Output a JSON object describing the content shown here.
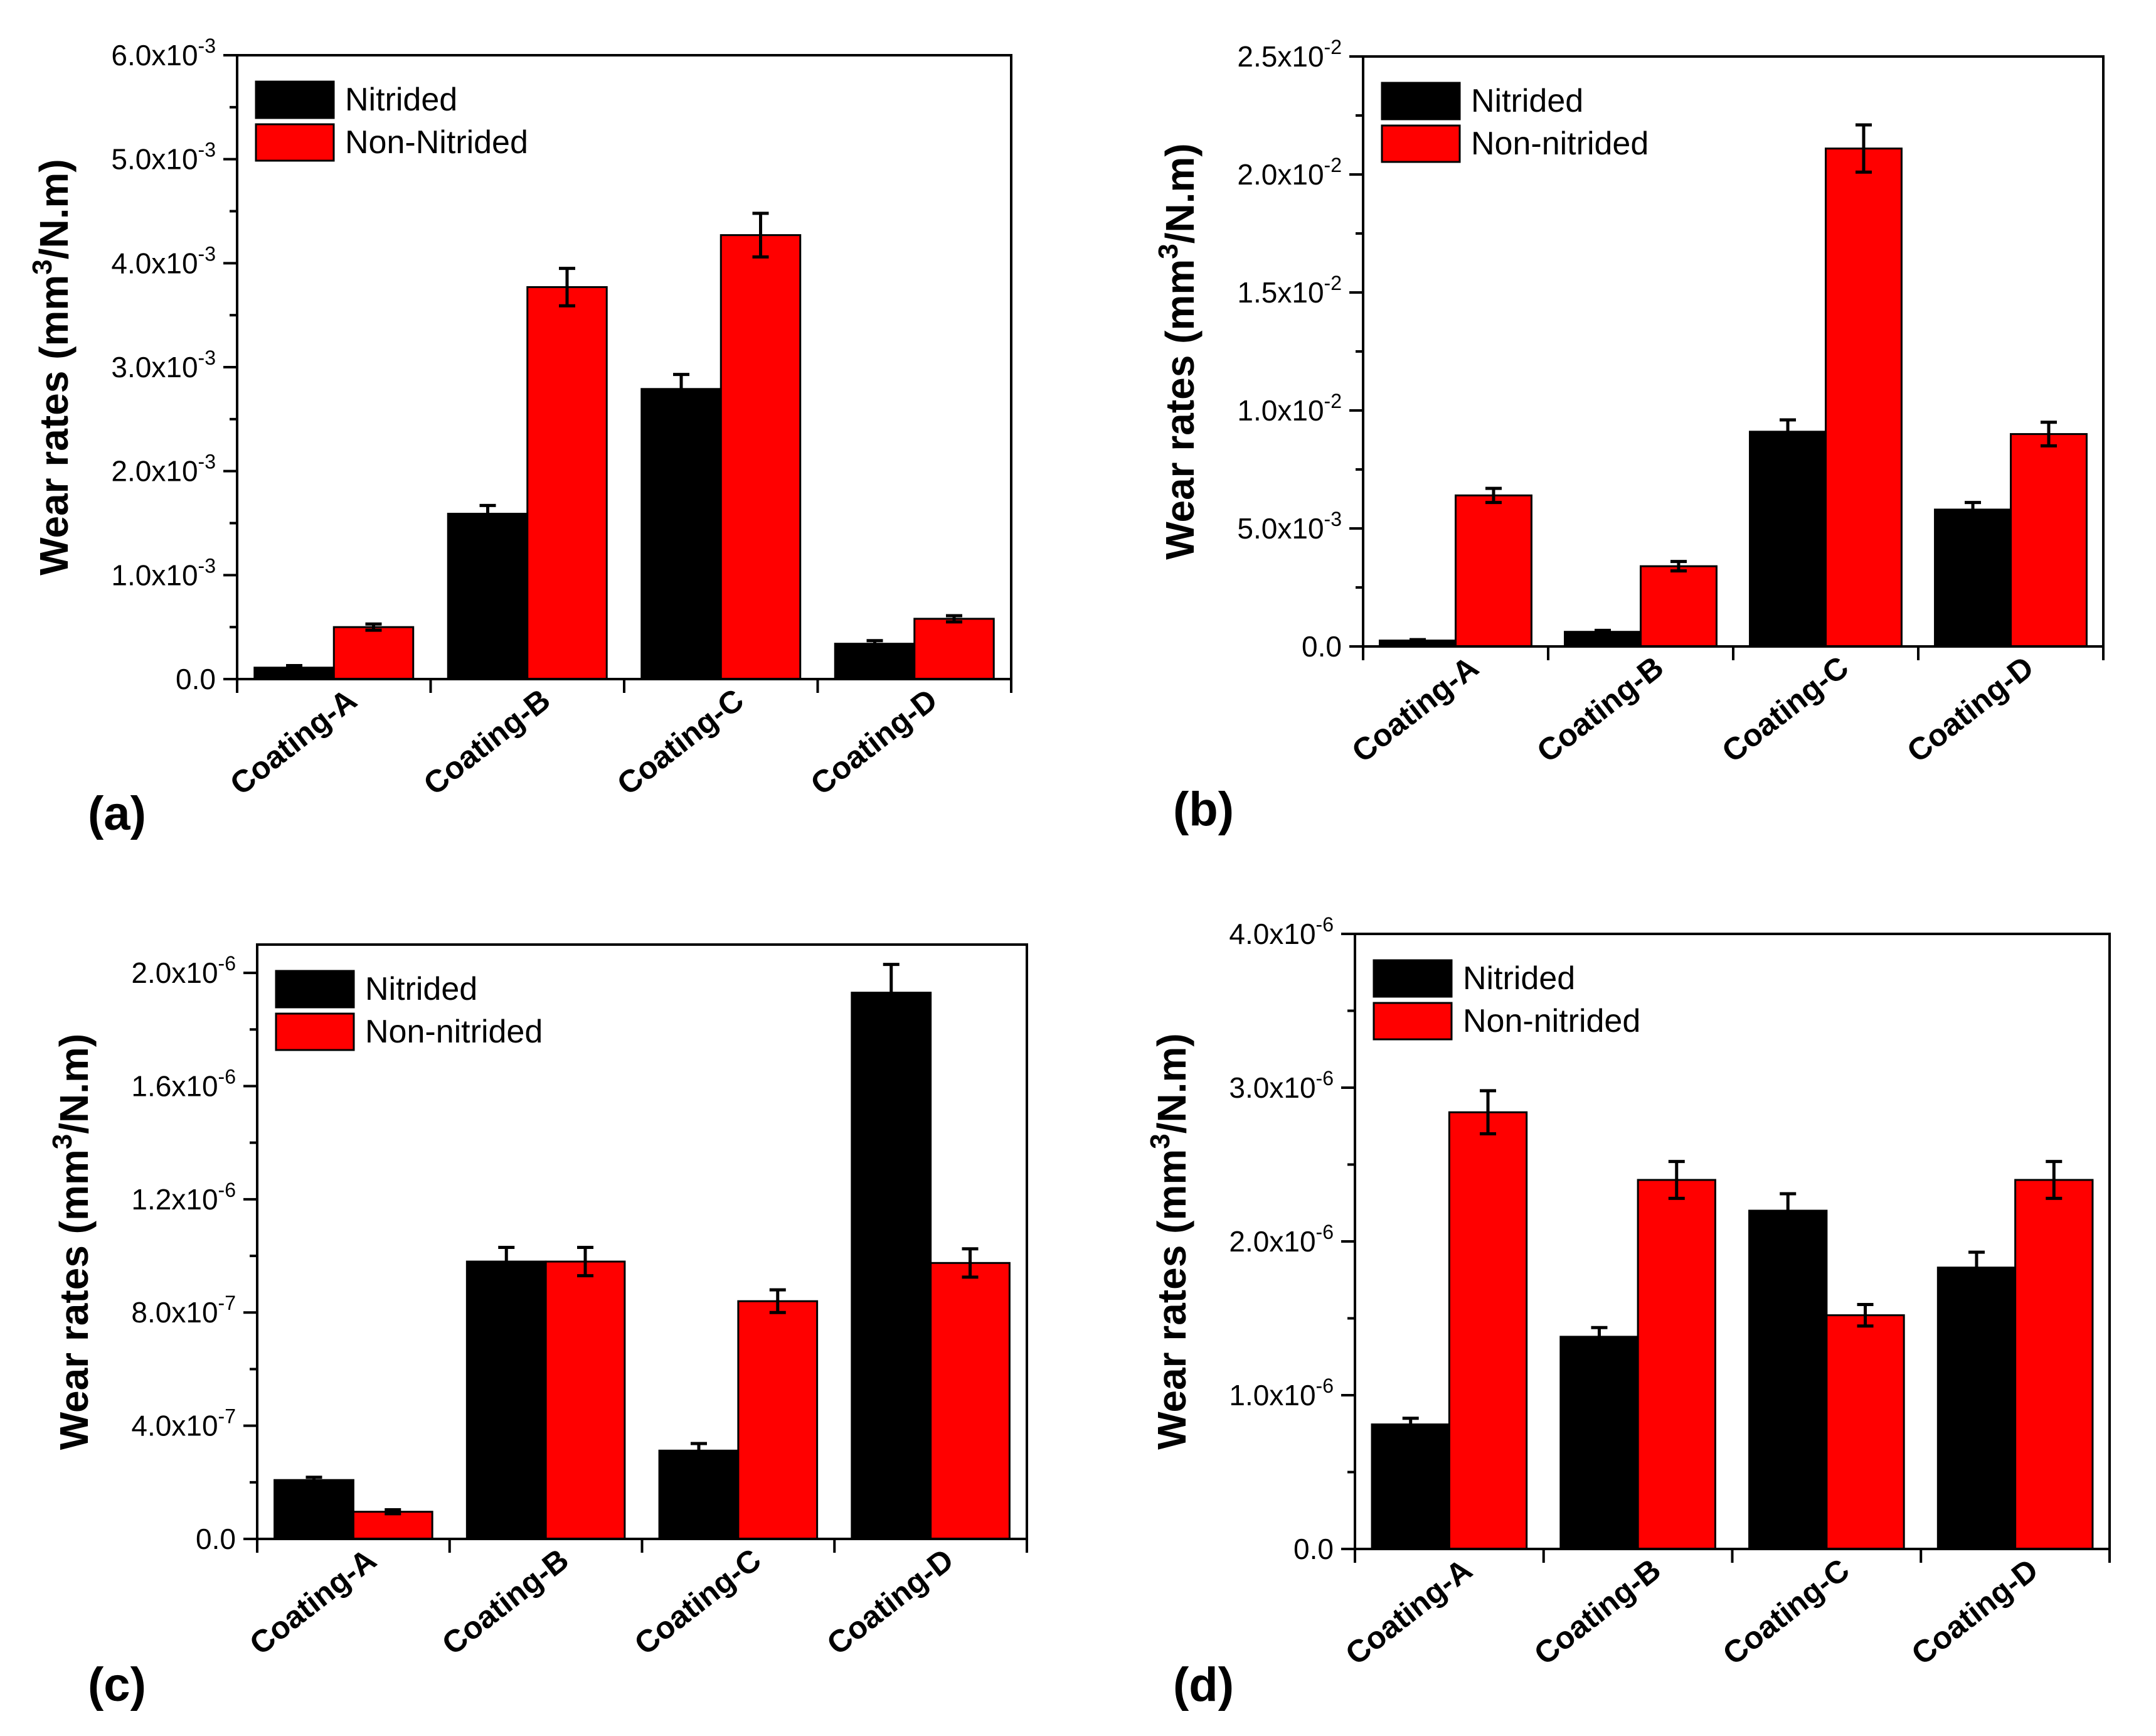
{
  "chart_data": [
    {
      "type": "bar",
      "panel_label": "(a)",
      "ylabel": "Wear rates (mm³/N.m)",
      "ylabel_parts": [
        "Wear rates (mm",
        "3",
        "/N.m)"
      ],
      "ylim": [
        0,
        0.006
      ],
      "yticks": [
        {
          "value": 0,
          "mant": "0.0",
          "exp": ""
        },
        {
          "value": 0.001,
          "mant": "1.0x10",
          "exp": "-3"
        },
        {
          "value": 0.002,
          "mant": "2.0x10",
          "exp": "-3"
        },
        {
          "value": 0.003,
          "mant": "3.0x10",
          "exp": "-3"
        },
        {
          "value": 0.004,
          "mant": "4.0x10",
          "exp": "-3"
        },
        {
          "value": 0.005,
          "mant": "5.0x10",
          "exp": "-3"
        },
        {
          "value": 0.006,
          "mant": "6.0x10",
          "exp": "-3"
        }
      ],
      "categories": [
        "Coating-A",
        "Coating-B",
        "Coating-C",
        "Coating-D"
      ],
      "series": [
        {
          "name": "Nitrided",
          "color": "#000000",
          "values": [
            0.00011,
            0.00159,
            0.00279,
            0.00034
          ],
          "errors": [
            2e-05,
            8e-05,
            0.00014,
            3e-05
          ]
        },
        {
          "name": "Non-Nitrided",
          "color": "#ff0000",
          "values": [
            0.0005,
            0.00377,
            0.00427,
            0.00058
          ],
          "errors": [
            3e-05,
            0.00018,
            0.00021,
            3e-05
          ]
        }
      ],
      "legend_position": "top-left",
      "cat_rotation": "rotated"
    },
    {
      "type": "bar",
      "panel_label": "(b)",
      "ylabel": "Wear rates (mm³/N.m)",
      "ylabel_parts": [
        "Wear rates (mm",
        "3",
        "/N.m)"
      ],
      "ylim": [
        0,
        0.025
      ],
      "yticks": [
        {
          "value": 0,
          "mant": "0.0",
          "exp": ""
        },
        {
          "value": 0.005,
          "mant": "5.0x10",
          "exp": "-3"
        },
        {
          "value": 0.01,
          "mant": "1.0x10",
          "exp": "-2"
        },
        {
          "value": 0.015,
          "mant": "1.5x10",
          "exp": "-2"
        },
        {
          "value": 0.02,
          "mant": "2.0x10",
          "exp": "-2"
        },
        {
          "value": 0.025,
          "mant": "2.5x10",
          "exp": "-2"
        }
      ],
      "categories": [
        "Coating-A",
        "Coating-B",
        "Coating-C",
        "Coating-D"
      ],
      "series": [
        {
          "name": "Nitrided",
          "color": "#000000",
          "values": [
            0.00025,
            0.00062,
            0.0091,
            0.0058
          ],
          "errors": [
            4e-05,
            6e-05,
            0.0005,
            0.0003
          ]
        },
        {
          "name": "Non-nitrided",
          "color": "#ff0000",
          "values": [
            0.0064,
            0.0034,
            0.0211,
            0.009
          ],
          "errors": [
            0.0003,
            0.0002,
            0.001,
            0.0005
          ]
        }
      ],
      "legend_position": "top-left",
      "cat_rotation": "rotated"
    },
    {
      "type": "bar",
      "panel_label": "(c)",
      "ylabel": "Wear rates (mm³/N.m)",
      "ylabel_parts": [
        "Wear rates (mm",
        "3",
        "/N.m)"
      ],
      "ylim": [
        0,
        2.1e-06
      ],
      "yticks": [
        {
          "value": 0,
          "mant": "0.0",
          "exp": ""
        },
        {
          "value": 4e-07,
          "mant": "4.0x10",
          "exp": "-7"
        },
        {
          "value": 8e-07,
          "mant": "8.0x10",
          "exp": "-7"
        },
        {
          "value": 1.2e-06,
          "mant": "1.2x10",
          "exp": "-6"
        },
        {
          "value": 1.6e-06,
          "mant": "1.6x10",
          "exp": "-6"
        },
        {
          "value": 2e-06,
          "mant": "2.0x10",
          "exp": "-6"
        }
      ],
      "categories": [
        "Coating-A",
        "Coating-B",
        "Coating-C",
        "Coating-D"
      ],
      "series": [
        {
          "name": "Nitrided",
          "color": "#000000",
          "values": [
            2.08e-07,
            9.8e-07,
            3.12e-07,
            1.93e-06
          ],
          "errors": [
            1e-08,
            5e-08,
            2.5e-08,
            1e-07
          ]
        },
        {
          "name": "Non-nitrided",
          "color": "#ff0000",
          "values": [
            9.6e-08,
            9.8e-07,
            8.4e-07,
            9.75e-07
          ],
          "errors": [
            7e-09,
            5e-08,
            4e-08,
            5e-08
          ]
        }
      ],
      "legend_position": "top-left",
      "cat_rotation": "rotated"
    },
    {
      "type": "bar",
      "panel_label": "(d)",
      "ylabel": "Wear rates (mm³/N.m)",
      "ylabel_parts": [
        "Wear rates (mm",
        "3",
        "/N.m)"
      ],
      "ylim": [
        0,
        4e-06
      ],
      "yticks": [
        {
          "value": 0,
          "mant": "0.0",
          "exp": ""
        },
        {
          "value": 1e-06,
          "mant": "1.0x10",
          "exp": "-6"
        },
        {
          "value": 2e-06,
          "mant": "2.0x10",
          "exp": "-6"
        },
        {
          "value": 3e-06,
          "mant": "3.0x10",
          "exp": "-6"
        },
        {
          "value": 4e-06,
          "mant": "4.0x10",
          "exp": "-6"
        }
      ],
      "categories": [
        "Coating-A",
        "Coating-B",
        "Coating-C",
        "Coating-D"
      ],
      "series": [
        {
          "name": "Nitrided",
          "color": "#000000",
          "values": [
            8.1e-07,
            1.38e-06,
            2.2e-06,
            1.83e-06
          ],
          "errors": [
            4e-08,
            6e-08,
            1.1e-07,
            1e-07
          ]
        },
        {
          "name": "Non-nitrided",
          "color": "#ff0000",
          "values": [
            2.84e-06,
            2.4e-06,
            1.52e-06,
            2.4e-06
          ],
          "errors": [
            1.4e-07,
            1.2e-07,
            7e-08,
            1.2e-07
          ]
        }
      ],
      "legend_position": "top-left",
      "cat_rotation": "rotated"
    }
  ]
}
